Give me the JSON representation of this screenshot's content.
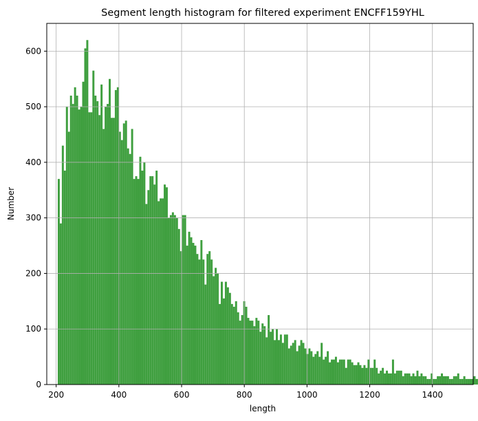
{
  "chart_data": {
    "type": "bar",
    "title": "Segment length histogram for filtered experiment ENCFF159YHL",
    "xlabel": "length",
    "ylabel": "Number",
    "xlim": [
      170,
      1530
    ],
    "ylim": [
      0,
      650
    ],
    "xticks": [
      200,
      400,
      600,
      800,
      1000,
      1200,
      1400
    ],
    "yticks": [
      0,
      100,
      200,
      300,
      400,
      500,
      600
    ],
    "grid": true,
    "bar_color": "#3f9f3f",
    "bin_width": 6.5,
    "bin_start": 205,
    "values": [
      370,
      290,
      430,
      385,
      500,
      455,
      520,
      505,
      535,
      520,
      495,
      500,
      545,
      605,
      620,
      490,
      490,
      565,
      520,
      510,
      485,
      540,
      460,
      500,
      505,
      550,
      480,
      480,
      530,
      535,
      455,
      440,
      470,
      475,
      425,
      415,
      460,
      370,
      375,
      370,
      410,
      385,
      400,
      325,
      350,
      375,
      375,
      360,
      385,
      330,
      335,
      335,
      360,
      355,
      300,
      305,
      310,
      305,
      300,
      280,
      240,
      305,
      305,
      250,
      275,
      265,
      255,
      250,
      235,
      225,
      260,
      225,
      180,
      235,
      240,
      225,
      195,
      210,
      200,
      145,
      185,
      155,
      185,
      175,
      165,
      145,
      140,
      150,
      130,
      115,
      125,
      150,
      140,
      120,
      115,
      115,
      105,
      120,
      115,
      95,
      110,
      105,
      85,
      125,
      95,
      100,
      80,
      100,
      80,
      90,
      75,
      90,
      90,
      65,
      70,
      75,
      80,
      60,
      70,
      80,
      75,
      65,
      55,
      65,
      60,
      50,
      55,
      60,
      50,
      75,
      45,
      50,
      60,
      40,
      45,
      45,
      50,
      40,
      45,
      45,
      45,
      30,
      45,
      45,
      40,
      35,
      35,
      40,
      35,
      30,
      35,
      30,
      45,
      30,
      30,
      45,
      30,
      20,
      25,
      30,
      20,
      25,
      20,
      20,
      45,
      20,
      25,
      25,
      25,
      15,
      20,
      20,
      20,
      15,
      20,
      15,
      25,
      15,
      20,
      15,
      15,
      10,
      10,
      20,
      10,
      10,
      15,
      15,
      20,
      15,
      15,
      15,
      10,
      10,
      15,
      15,
      20,
      10,
      10,
      15,
      10,
      10,
      10,
      10,
      15,
      10,
      10,
      10,
      10,
      10,
      5,
      10,
      10,
      10,
      5,
      5,
      10,
      5,
      5,
      10
    ]
  }
}
